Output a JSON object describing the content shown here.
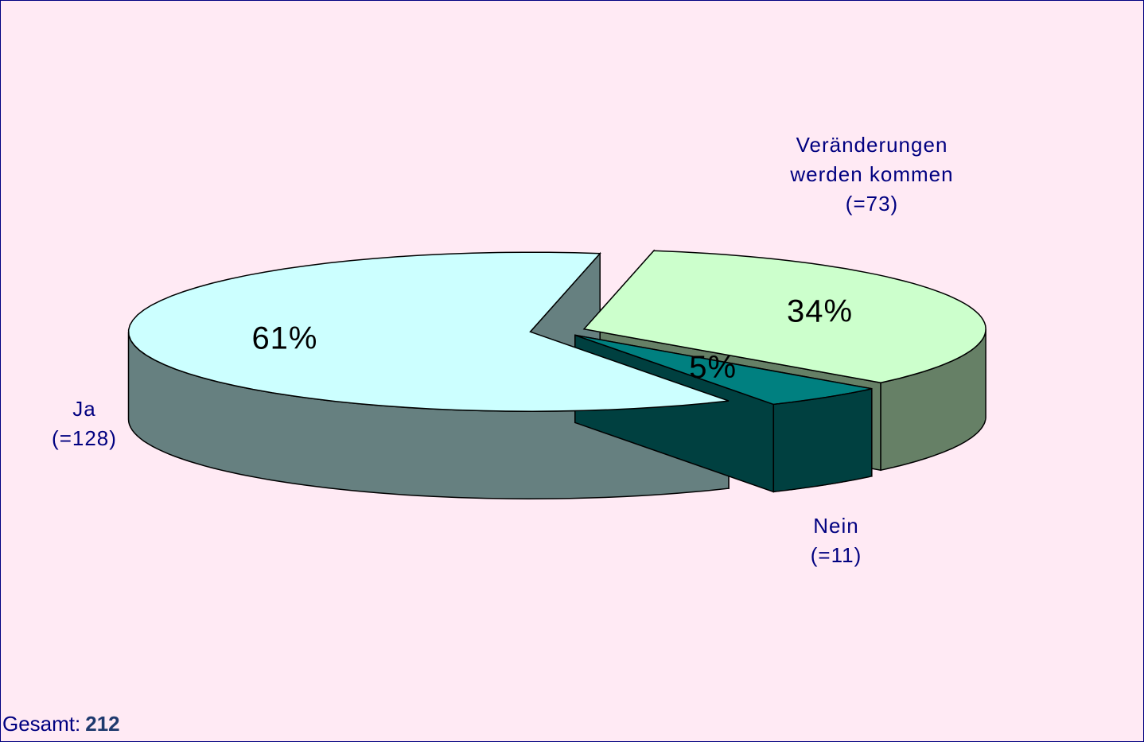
{
  "chart_data": {
    "type": "pie3d",
    "categories": [
      "Ja",
      "Veränderungen werden kommen",
      "Nein"
    ],
    "count_labels": [
      "(=128)",
      "(=73)",
      "(=11)"
    ],
    "values": [
      61,
      34,
      5
    ],
    "value_labels": [
      "61%",
      "34%",
      "5%"
    ],
    "colors": [
      "#ccffff",
      "#ccffcc",
      "#008080"
    ],
    "side_colors": [
      "#668080",
      "#668066",
      "#004040"
    ],
    "total_label": "Gesamt:",
    "total": 212
  }
}
